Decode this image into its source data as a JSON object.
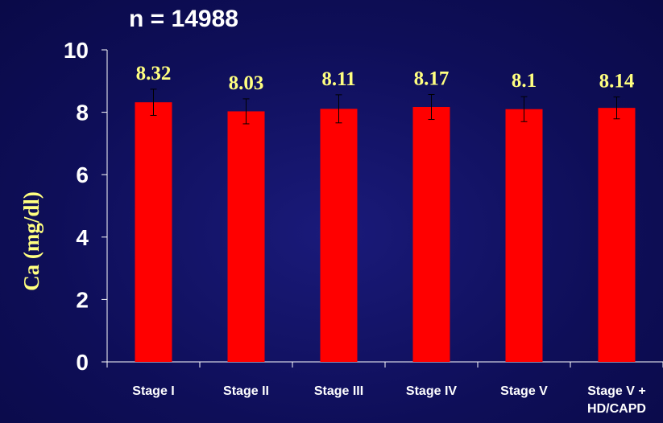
{
  "colors": {
    "background": "#101060",
    "bar": "#ff0000",
    "text": "#ffffff",
    "value_labels": "#ffff80",
    "ylabel": "#ffff80",
    "axis": "#ffffff",
    "error_bar": "#000000"
  },
  "chart_data": {
    "type": "bar",
    "title": "n = 14988",
    "ylabel": "Ca (mg/dl)",
    "xlabel": "",
    "ylim": [
      0,
      10
    ],
    "yticks": [
      "0",
      "2",
      "4",
      "6",
      "8",
      "10"
    ],
    "grid": false,
    "categories": [
      [
        "Stage I"
      ],
      [
        "Stage II"
      ],
      [
        "Stage III"
      ],
      [
        "Stage IV"
      ],
      [
        "Stage V"
      ],
      [
        "Stage V +",
        "HD/CAPD"
      ]
    ],
    "values": [
      8.32,
      8.03,
      8.11,
      8.17,
      8.1,
      8.14
    ],
    "value_labels": [
      "8.32",
      "8.03",
      "8.11",
      "8.17",
      "8.1",
      "8.14"
    ],
    "error": [
      0.42,
      0.4,
      0.45,
      0.4,
      0.4,
      0.35
    ]
  }
}
